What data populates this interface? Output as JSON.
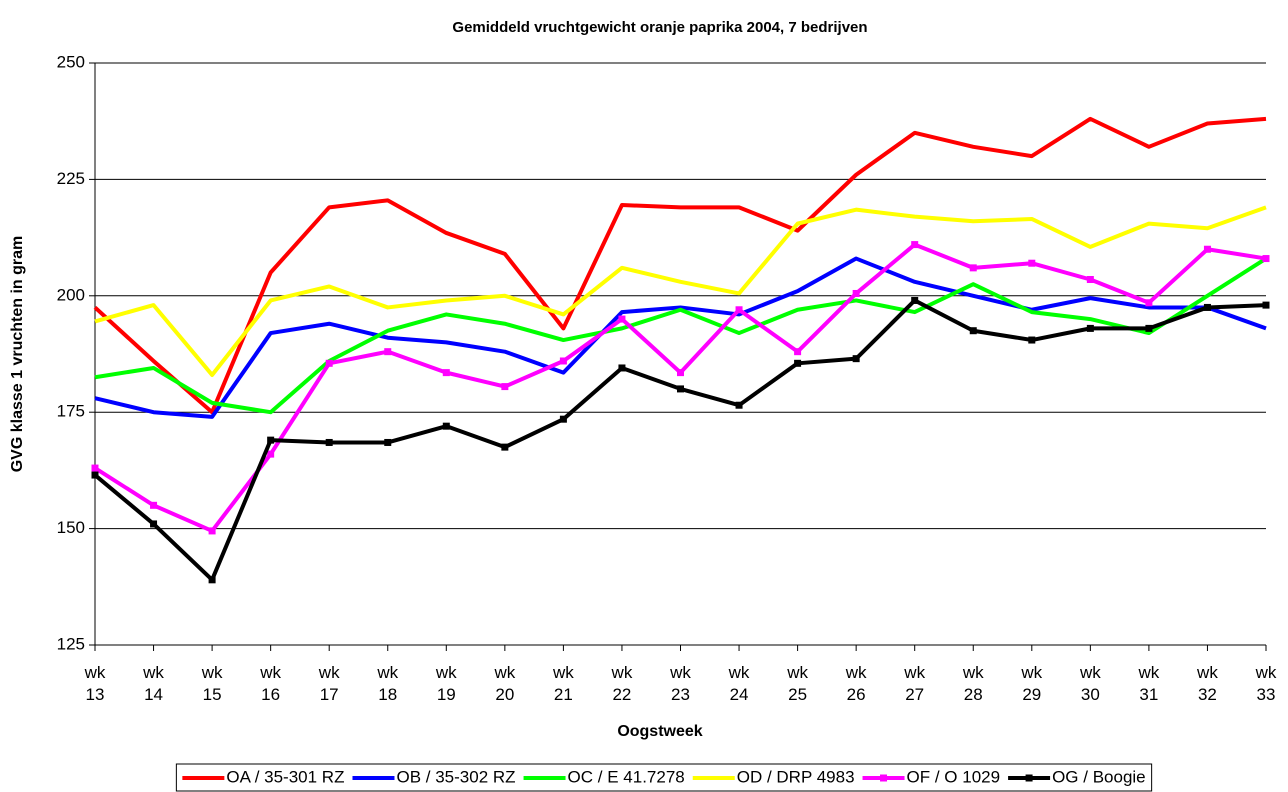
{
  "chart_data": {
    "type": "line",
    "title": "Gemiddeld vruchtgewicht oranje paprika 2004, 7 bedrijven",
    "x_label": "Oogstweek",
    "y_label": "GVG klasse 1 vruchten in gram",
    "categories": [
      "wk 13",
      "wk 14",
      "wk 15",
      "wk 16",
      "wk 17",
      "wk 18",
      "wk 19",
      "wk 20",
      "wk 21",
      "wk 22",
      "wk 23",
      "wk 24",
      "wk 25",
      "wk 26",
      "wk 27",
      "wk 28",
      "wk 29",
      "wk 30",
      "wk 31",
      "wk 32",
      "wk 33"
    ],
    "ylim": [
      125,
      250
    ],
    "yticks": [
      125,
      150,
      175,
      200,
      225,
      250
    ],
    "grid": true,
    "legend": "bottom",
    "series": [
      {
        "name": "OA / 35-301 RZ",
        "color": "#ff0000",
        "values": [
          197.5,
          186,
          175,
          205,
          219,
          220.5,
          213.5,
          209,
          193,
          219.5,
          219,
          219,
          214,
          226,
          235,
          232,
          230,
          238,
          232,
          237,
          238
        ]
      },
      {
        "name": "OB / 35-302 RZ",
        "color": "#0000ff",
        "values": [
          178,
          175,
          174,
          192,
          194,
          191,
          190,
          188,
          183.5,
          196.5,
          197.5,
          196,
          201,
          208,
          203,
          200,
          197,
          199.5,
          197.5,
          197.5,
          193
        ]
      },
      {
        "name": "OC / E 41.7278",
        "color": "#00ff00",
        "values": [
          182.5,
          184.5,
          177,
          175,
          186,
          192.5,
          196,
          194,
          190.5,
          193,
          197,
          192,
          197,
          199,
          196.5,
          202.5,
          196.5,
          195,
          192,
          200,
          208
        ]
      },
      {
        "name": "OD / DRP 4983",
        "color": "#ffff00",
        "values": [
          194.5,
          198,
          183,
          199,
          202,
          197.5,
          199,
          200,
          196,
          206,
          203,
          200.5,
          215.5,
          218.5,
          217,
          216,
          216.5,
          210.5,
          215.5,
          214.5,
          219
        ]
      },
      {
        "name": "OF / O 1029",
        "color": "#ff00ff",
        "marker": "square",
        "values": [
          163,
          155,
          149.5,
          166,
          185.5,
          188,
          183.5,
          180.5,
          186,
          195,
          183.5,
          197,
          188,
          200.5,
          211,
          206,
          207,
          203.5,
          198.5,
          210,
          208
        ]
      },
      {
        "name": "OG / Boogie",
        "color": "#000000",
        "marker": "square",
        "values": [
          161.5,
          151,
          139,
          169,
          168.5,
          168.5,
          172,
          167.5,
          173.5,
          184.5,
          180,
          176.5,
          185.5,
          186.5,
          199,
          192.5,
          190.5,
          193,
          193,
          197.5,
          198
        ]
      }
    ]
  }
}
